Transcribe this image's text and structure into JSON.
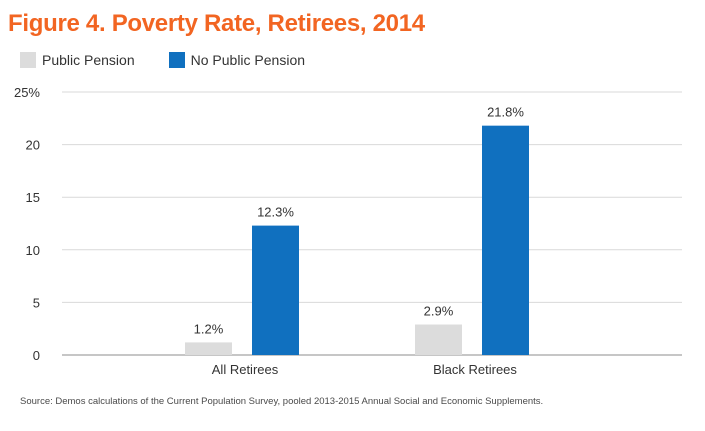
{
  "chart_data": {
    "type": "bar",
    "title": "Figure 4. Poverty Rate, Retirees, 2014",
    "categories": [
      "All Retirees",
      "Black Retirees"
    ],
    "series": [
      {
        "name": "Public Pension",
        "values": [
          1.2,
          2.9
        ],
        "labels": [
          "1.2%",
          "2.9%"
        ],
        "color": "#dcdcdc"
      },
      {
        "name": "No Public Pension",
        "values": [
          12.3,
          21.8
        ],
        "labels": [
          "12.3%",
          "21.8%"
        ],
        "color": "#1070bf"
      }
    ],
    "ylim": [
      0,
      25
    ],
    "yticks": [
      0,
      5,
      10,
      15,
      20,
      25
    ],
    "ytick_labels": [
      "0",
      "5",
      "10",
      "15",
      "20",
      "25%"
    ],
    "xlabel": "",
    "ylabel": "",
    "grid": true,
    "legend_placement": "top-left"
  },
  "source": "Source: Demos calculations of the Current Population Survey, pooled 2013-2015 Annual Social and Economic Supplements.",
  "colors": {
    "title": "#f26522",
    "grid": "#d9d9d9"
  }
}
